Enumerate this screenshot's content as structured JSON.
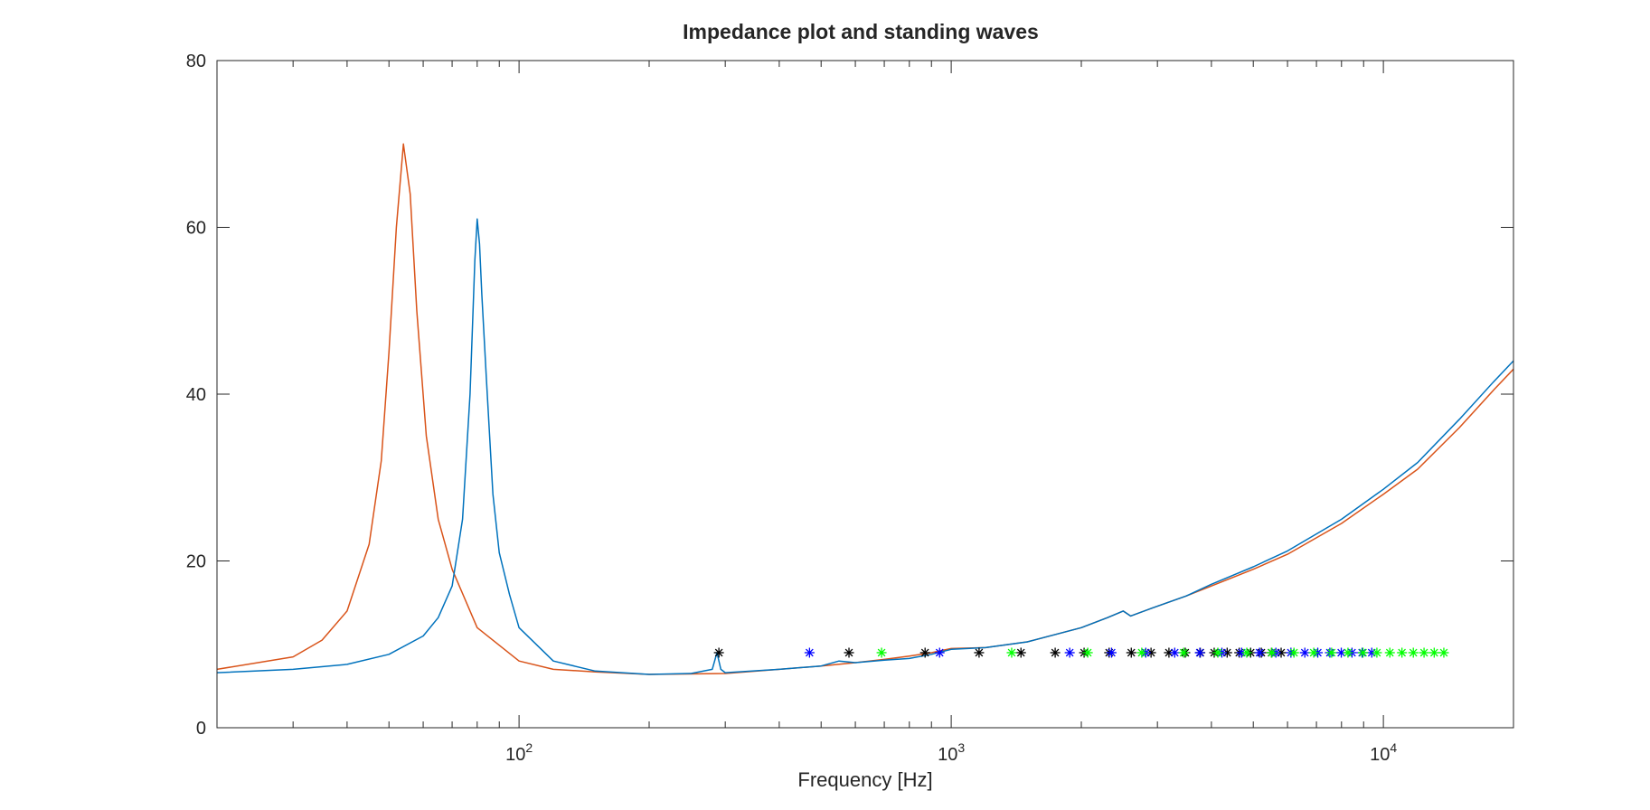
{
  "chart_data": {
    "type": "line",
    "title": "Impedance plot and standing waves",
    "xlabel": "Frequency [Hz]",
    "ylabel": "",
    "x_scale": "log",
    "xlim": [
      20,
      20000
    ],
    "ylim": [
      0,
      80
    ],
    "x_ticks": [
      {
        "value": 100,
        "base": "10",
        "exp": "2"
      },
      {
        "value": 1000,
        "base": "10",
        "exp": "3"
      },
      {
        "value": 10000,
        "base": "10",
        "exp": "4"
      }
    ],
    "y_ticks": [
      0,
      20,
      40,
      60,
      80
    ],
    "grid": false,
    "legend": "none",
    "series": [
      {
        "color": "#D95319",
        "points": [
          [
            20,
            7
          ],
          [
            30,
            8.5
          ],
          [
            35,
            10.5
          ],
          [
            40,
            14
          ],
          [
            45,
            22
          ],
          [
            48,
            32
          ],
          [
            50,
            45
          ],
          [
            52,
            60
          ],
          [
            54,
            70
          ],
          [
            56,
            64
          ],
          [
            58,
            50
          ],
          [
            61,
            35
          ],
          [
            65,
            25
          ],
          [
            70,
            19
          ],
          [
            80,
            12
          ],
          [
            100,
            8
          ],
          [
            120,
            7
          ],
          [
            150,
            6.7
          ],
          [
            200,
            6.4
          ],
          [
            300,
            6.5
          ],
          [
            400,
            7
          ],
          [
            500,
            7.4
          ],
          [
            600,
            7.8
          ],
          [
            700,
            8.2
          ],
          [
            800,
            8.6
          ],
          [
            900,
            9
          ],
          [
            1000,
            9.5
          ],
          [
            1200,
            9.6
          ],
          [
            1500,
            10.3
          ],
          [
            2000,
            12
          ],
          [
            2300,
            13.2
          ],
          [
            2500,
            14
          ],
          [
            2600,
            13.4
          ],
          [
            2900,
            14.3
          ],
          [
            3500,
            15.8
          ],
          [
            4000,
            17
          ],
          [
            5000,
            19
          ],
          [
            6000,
            20.8
          ],
          [
            8000,
            24.5
          ],
          [
            10000,
            28
          ],
          [
            12000,
            31
          ],
          [
            15000,
            36
          ],
          [
            18000,
            40.5
          ],
          [
            20000,
            43
          ]
        ]
      },
      {
        "color": "#0072BD",
        "points": [
          [
            20,
            6.6
          ],
          [
            30,
            7
          ],
          [
            40,
            7.6
          ],
          [
            50,
            8.8
          ],
          [
            60,
            11
          ],
          [
            65,
            13.2
          ],
          [
            70,
            17
          ],
          [
            74,
            25
          ],
          [
            77,
            40
          ],
          [
            79,
            56
          ],
          [
            80,
            61
          ],
          [
            81,
            58
          ],
          [
            82,
            52
          ],
          [
            84,
            42
          ],
          [
            87,
            28
          ],
          [
            90,
            21
          ],
          [
            95,
            16
          ],
          [
            100,
            12
          ],
          [
            120,
            8
          ],
          [
            150,
            6.8
          ],
          [
            200,
            6.4
          ],
          [
            250,
            6.5
          ],
          [
            280,
            7
          ],
          [
            287,
            9
          ],
          [
            293,
            7
          ],
          [
            300,
            6.6
          ],
          [
            400,
            7
          ],
          [
            500,
            7.4
          ],
          [
            550,
            8
          ],
          [
            600,
            7.8
          ],
          [
            700,
            8.1
          ],
          [
            800,
            8.3
          ],
          [
            900,
            8.8
          ],
          [
            1000,
            9.4
          ],
          [
            1200,
            9.6
          ],
          [
            1500,
            10.3
          ],
          [
            2000,
            12
          ],
          [
            2300,
            13.2
          ],
          [
            2500,
            14
          ],
          [
            2600,
            13.4
          ],
          [
            2900,
            14.3
          ],
          [
            3500,
            15.8
          ],
          [
            4000,
            17.2
          ],
          [
            5000,
            19.3
          ],
          [
            6000,
            21.2
          ],
          [
            8000,
            25
          ],
          [
            10000,
            28.6
          ],
          [
            12000,
            31.8
          ],
          [
            15000,
            37
          ],
          [
            18000,
            41.5
          ],
          [
            20000,
            44
          ]
        ]
      }
    ],
    "markers": {
      "symbol": "*",
      "y": 9,
      "groups": [
        {
          "color": "#000000",
          "x": [
            290,
            580,
            870,
            1160,
            1450,
            1740,
            2030,
            2320,
            2610,
            2900,
            3190,
            3480,
            3770,
            4060,
            4350,
            4640,
            4930,
            5220,
            5510,
            5800
          ]
        },
        {
          "color": "#0000FF",
          "x": [
            470,
            940,
            1880,
            2350,
            2820,
            3290,
            3760,
            4230,
            4700,
            5170,
            5640,
            6110,
            6580,
            7050,
            7520,
            7990,
            8460,
            8930,
            9400
          ]
        },
        {
          "color": "#00FF00",
          "x": [
            690,
            1380,
            2070,
            2760,
            3450,
            4140,
            4830,
            5520,
            6210,
            6900,
            7590,
            8280,
            8970,
            9660,
            10350,
            11040,
            11730,
            12420,
            13110,
            13800
          ]
        }
      ]
    }
  }
}
